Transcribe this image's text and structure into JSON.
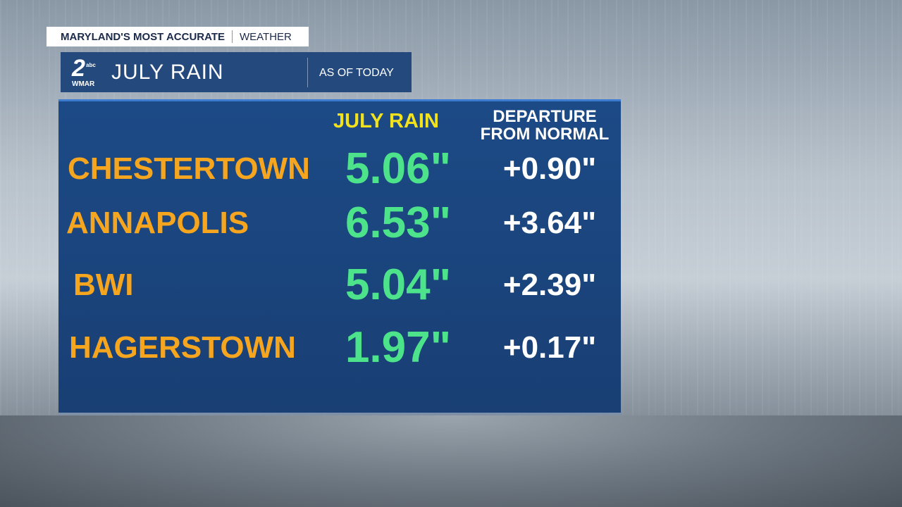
{
  "header": {
    "brand": "MARYLAND'S MOST ACCURATE",
    "section": "WEATHER"
  },
  "logo": {
    "number": "2",
    "network": "abc",
    "station": "WMAR"
  },
  "title": "JULY RAIN",
  "subtitle": "AS OF TODAY",
  "table": {
    "columns": [
      "JULY RAIN",
      "DEPARTURE FROM NORMAL"
    ],
    "rows": [
      [
        "CHESTERTOWN",
        "5.06\"",
        "+0.90\""
      ],
      [
        "ANNAPOLIS",
        "6.53\"",
        "+3.64\""
      ],
      [
        "BWI",
        "5.04\"",
        "+2.39\""
      ],
      [
        "HAGERSTOWN",
        "1.97\"",
        "+0.17\""
      ]
    ]
  }
}
